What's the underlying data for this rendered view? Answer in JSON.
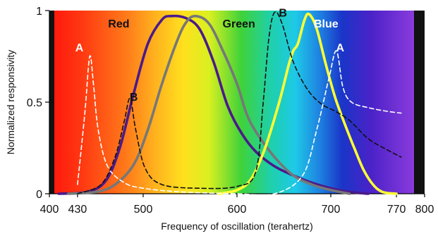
{
  "chart_data": {
    "type": "line",
    "xlabel": "Frequency of oscillation (terahertz)",
    "ylabel": "Normalized responsivity",
    "xlim": [
      400,
      800
    ],
    "ylim": [
      0,
      1
    ],
    "x_ticks": [
      400,
      430,
      500,
      600,
      700,
      770,
      800
    ],
    "y_ticks": [
      {
        "value": 0,
        "label": "0"
      },
      {
        "value": 0.5,
        "label": "0.5"
      },
      {
        "value": 1,
        "label": "1"
      }
    ],
    "background": "visible-spectrum gradient: red (low frequency) to violet (high frequency), black borders at 400 and 800",
    "series": [
      {
        "name": "Red",
        "color": "#4b1a8a",
        "style": "solid",
        "points": [
          [
            410,
            0
          ],
          [
            440,
            0.01
          ],
          [
            460,
            0.07
          ],
          [
            475,
            0.25
          ],
          [
            490,
            0.55
          ],
          [
            505,
            0.82
          ],
          [
            520,
            0.95
          ],
          [
            530,
            0.97
          ],
          [
            545,
            0.96
          ],
          [
            560,
            0.9
          ],
          [
            575,
            0.72
          ],
          [
            590,
            0.48
          ],
          [
            605,
            0.33
          ],
          [
            620,
            0.23
          ],
          [
            640,
            0.15
          ],
          [
            660,
            0.1
          ],
          [
            680,
            0.06
          ],
          [
            700,
            0.03
          ],
          [
            720,
            0.01
          ],
          [
            740,
            0
          ]
        ]
      },
      {
        "name": "Green",
        "color": "#777777",
        "style": "solid",
        "points": [
          [
            420,
            0
          ],
          [
            450,
            0.01
          ],
          [
            470,
            0.05
          ],
          [
            490,
            0.16
          ],
          [
            505,
            0.35
          ],
          [
            520,
            0.6
          ],
          [
            535,
            0.82
          ],
          [
            545,
            0.93
          ],
          [
            555,
            0.97
          ],
          [
            570,
            0.93
          ],
          [
            585,
            0.78
          ],
          [
            600,
            0.6
          ],
          [
            610,
            0.44
          ],
          [
            620,
            0.34
          ],
          [
            640,
            0.2
          ],
          [
            660,
            0.1
          ],
          [
            680,
            0.05
          ],
          [
            700,
            0.02
          ],
          [
            720,
            0
          ]
        ]
      },
      {
        "name": "Blue",
        "color": "#ffff33",
        "style": "solid",
        "points": [
          [
            580,
            0
          ],
          [
            600,
            0.02
          ],
          [
            615,
            0.08
          ],
          [
            630,
            0.25
          ],
          [
            645,
            0.5
          ],
          [
            655,
            0.7
          ],
          [
            660,
            0.78
          ],
          [
            665,
            0.82
          ],
          [
            672,
            0.95
          ],
          [
            677,
            0.98
          ],
          [
            685,
            0.9
          ],
          [
            695,
            0.7
          ],
          [
            705,
            0.52
          ],
          [
            715,
            0.38
          ],
          [
            725,
            0.25
          ],
          [
            735,
            0.13
          ],
          [
            745,
            0.05
          ],
          [
            755,
            0.01
          ],
          [
            770,
            0
          ]
        ]
      },
      {
        "name": "A",
        "color": "#ffffff",
        "style": "dashed",
        "points": [
          [
            430,
            0.05
          ],
          [
            438,
            0.45
          ],
          [
            443,
            0.75
          ],
          [
            447,
            0.6
          ],
          [
            452,
            0.35
          ],
          [
            462,
            0.15
          ],
          [
            480,
            0.06
          ],
          [
            500,
            0.03
          ],
          [
            540,
            0.01
          ],
          [
            600,
            0
          ],
          [
            640,
            0
          ],
          [
            670,
            0.1
          ],
          [
            685,
            0.35
          ],
          [
            698,
            0.63
          ],
          [
            706,
            0.78
          ],
          [
            713,
            0.58
          ],
          [
            722,
            0.5
          ],
          [
            740,
            0.47
          ],
          [
            760,
            0.45
          ],
          [
            775,
            0.44
          ]
        ]
      },
      {
        "name": "B",
        "color": "#111111",
        "style": "dashed",
        "points": [
          [
            430,
            0
          ],
          [
            455,
            0.05
          ],
          [
            470,
            0.2
          ],
          [
            480,
            0.4
          ],
          [
            486,
            0.52
          ],
          [
            492,
            0.35
          ],
          [
            502,
            0.14
          ],
          [
            520,
            0.05
          ],
          [
            560,
            0.03
          ],
          [
            600,
            0.04
          ],
          [
            620,
            0.12
          ],
          [
            628,
            0.5
          ],
          [
            634,
            0.85
          ],
          [
            640,
            0.99
          ],
          [
            648,
            0.93
          ],
          [
            660,
            0.72
          ],
          [
            675,
            0.57
          ],
          [
            690,
            0.49
          ],
          [
            705,
            0.45
          ],
          [
            720,
            0.4
          ],
          [
            740,
            0.3
          ],
          [
            760,
            0.24
          ],
          [
            775,
            0.2
          ]
        ]
      }
    ],
    "annotations": [
      {
        "text": "Red",
        "x": 474,
        "y": 0.93,
        "color": "#111111"
      },
      {
        "text": "Green",
        "x": 602,
        "y": 0.93,
        "color": "#111111"
      },
      {
        "text": "Blue",
        "x": 695,
        "y": 0.93,
        "color": "#ffffff"
      },
      {
        "text": "A",
        "x": 432,
        "y": 0.8,
        "color": "#ffffff"
      },
      {
        "text": "B",
        "x": 490,
        "y": 0.53,
        "color": "#111111"
      },
      {
        "text": "B",
        "x": 649,
        "y": 0.99,
        "color": "#111111"
      },
      {
        "text": "A",
        "x": 710,
        "y": 0.8,
        "color": "#ffffff"
      }
    ],
    "grid": false,
    "legend": "none"
  }
}
